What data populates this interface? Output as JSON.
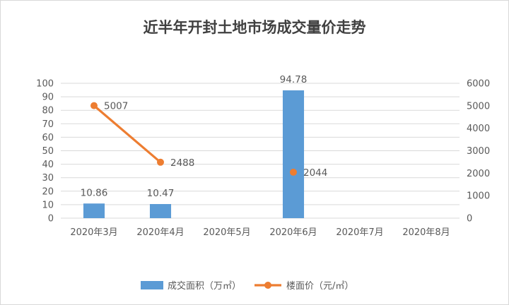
{
  "chart_data": {
    "type": "bar",
    "title": "近半年开封土地市场成交量价走势",
    "categories": [
      "2020年3月",
      "2020年4月",
      "2020年5月",
      "2020年6月",
      "2020年7月",
      "2020年8月"
    ],
    "series": [
      {
        "name": "成交面积（万㎡）",
        "type": "bar",
        "axis": "left",
        "values": [
          10.86,
          10.47,
          null,
          94.78,
          null,
          null
        ],
        "labels": [
          "10.86",
          "10.47",
          "",
          "94.78",
          "",
          ""
        ]
      },
      {
        "name": "楼面价（元/㎡）",
        "type": "line",
        "axis": "right",
        "values": [
          5007,
          2488,
          null,
          2044,
          null,
          null
        ],
        "labels": [
          "5007",
          "2488",
          "",
          "2044",
          "",
          ""
        ]
      }
    ],
    "ylim_left": [
      0,
      100
    ],
    "yticks_left": [
      "0",
      "10",
      "20",
      "30",
      "40",
      "50",
      "60",
      "70",
      "80",
      "90",
      "100"
    ],
    "ylim_right": [
      0,
      6000
    ],
    "yticks_right": [
      "0",
      "1000",
      "2000",
      "3000",
      "4000",
      "5000",
      "6000"
    ],
    "grid": true,
    "legend_position": "bottom",
    "colors": {
      "bar": "#5B9BD5",
      "line": "#ED7D31",
      "grid": "#D9D9D9",
      "text": "#595959",
      "title": "#404040",
      "border": "#D9D9D9"
    }
  }
}
